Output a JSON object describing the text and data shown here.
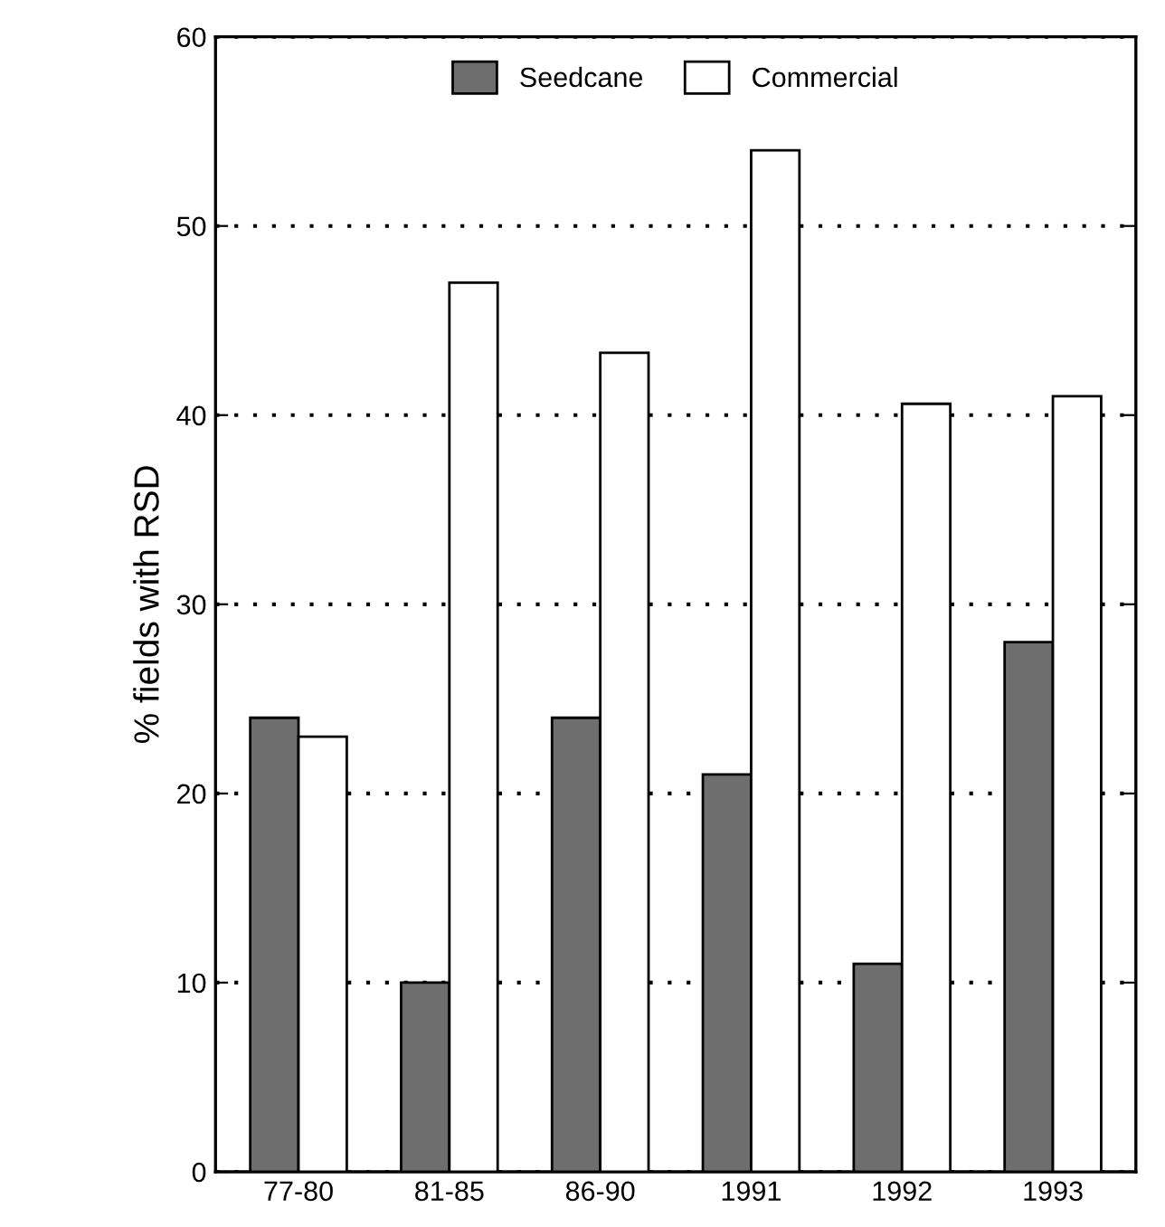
{
  "chart_data": {
    "type": "bar",
    "ylabel": "% fields with RSD",
    "categories": [
      "77-80",
      "81-85",
      "86-90",
      "1991",
      "1992",
      "1993"
    ],
    "series": [
      {
        "name": "Seedcane",
        "color": "#6e6e6e",
        "values": [
          24,
          10,
          24,
          21,
          11,
          28
        ]
      },
      {
        "name": "Commercial",
        "color": "#ffffff",
        "values": [
          23,
          47,
          43.3,
          54,
          40.6,
          41
        ]
      }
    ],
    "ylim": [
      0,
      60
    ],
    "yticks": [
      0,
      10,
      20,
      30,
      40,
      50,
      60
    ],
    "grid": "y",
    "legend": "top"
  }
}
